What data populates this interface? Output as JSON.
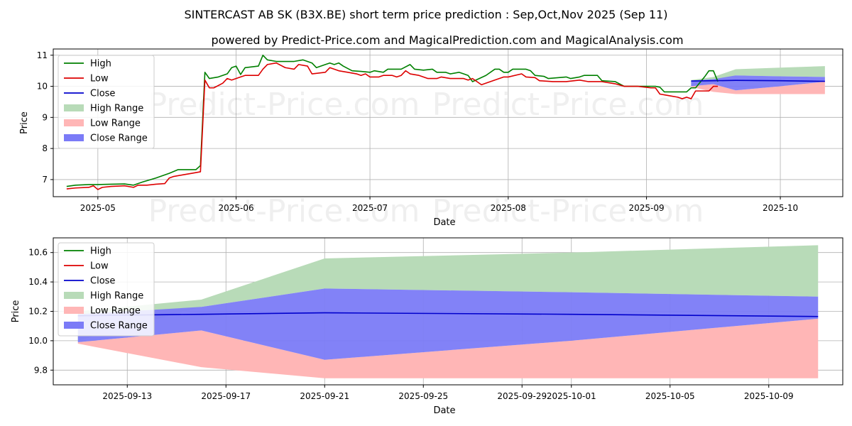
{
  "title": "SINTERCAST AB SK (B3X.BE) short term price prediction : Sep,Oct,Nov 2025 (Sep 11)",
  "subtitle": "powered by Predict-Price.com and MagicalPrediction.com and MagicalAnalysis.com",
  "watermark": "Predict-Price.com",
  "colors": {
    "high": "#008000",
    "low": "#dd0000",
    "close": "#0000cc",
    "high_range": "#b8dbb8",
    "low_range": "#ffb6b6",
    "close_range": "#7b7bf7"
  },
  "legend": [
    "High",
    "Low",
    "Close",
    "High Range",
    "Low Range",
    "Close Range"
  ],
  "chart_data": [
    {
      "type": "line",
      "xlabel": "Date",
      "ylabel": "Price",
      "x_range": [
        "2025-04-21",
        "2025-10-15"
      ],
      "ylim": [
        6.45,
        11.2
      ],
      "grid": true,
      "legend_position": "top-left",
      "x_ticks": [
        "2025-05-01",
        "2025-06-01",
        "2025-07-01",
        "2025-08-01",
        "2025-09-01",
        "2025-10-01"
      ],
      "x_tick_labels": [
        "2025-05",
        "2025-06",
        "2025-07",
        "2025-08",
        "2025-09",
        "2025-10"
      ],
      "y_ticks": [
        7,
        8,
        9,
        10,
        11
      ],
      "series": [
        {
          "name": "High",
          "points": [
            [
              "2025-04-24",
              6.78
            ],
            [
              "2025-04-26",
              6.82
            ],
            [
              "2025-04-29",
              6.84
            ],
            [
              "2025-05-01",
              6.84
            ],
            [
              "2025-05-04",
              6.85
            ],
            [
              "2025-05-07",
              6.86
            ],
            [
              "2025-05-09",
              6.82
            ],
            [
              "2025-05-11",
              6.92
            ],
            [
              "2025-05-14",
              7.05
            ],
            [
              "2025-05-17",
              7.2
            ],
            [
              "2025-05-19",
              7.32
            ],
            [
              "2025-05-21",
              7.32
            ],
            [
              "2025-05-23",
              7.32
            ],
            [
              "2025-05-24",
              7.45
            ],
            [
              "2025-05-25",
              10.45
            ],
            [
              "2025-05-26",
              10.25
            ],
            [
              "2025-05-28",
              10.3
            ],
            [
              "2025-05-30",
              10.4
            ],
            [
              "2025-05-31",
              10.6
            ],
            [
              "2025-06-01",
              10.65
            ],
            [
              "2025-06-02",
              10.38
            ],
            [
              "2025-06-03",
              10.6
            ],
            [
              "2025-06-06",
              10.65
            ],
            [
              "2025-06-07",
              11.0
            ],
            [
              "2025-06-08",
              10.85
            ],
            [
              "2025-06-10",
              10.8
            ],
            [
              "2025-06-14",
              10.8
            ],
            [
              "2025-06-16",
              10.85
            ],
            [
              "2025-06-18",
              10.75
            ],
            [
              "2025-06-19",
              10.6
            ],
            [
              "2025-06-21",
              10.7
            ],
            [
              "2025-06-22",
              10.75
            ],
            [
              "2025-06-23",
              10.7
            ],
            [
              "2025-06-24",
              10.75
            ],
            [
              "2025-06-25",
              10.65
            ],
            [
              "2025-06-27",
              10.5
            ],
            [
              "2025-06-29",
              10.48
            ],
            [
              "2025-07-01",
              10.45
            ],
            [
              "2025-07-02",
              10.5
            ],
            [
              "2025-07-04",
              10.45
            ],
            [
              "2025-07-05",
              10.55
            ],
            [
              "2025-07-08",
              10.55
            ],
            [
              "2025-07-10",
              10.7
            ],
            [
              "2025-07-11",
              10.55
            ],
            [
              "2025-07-13",
              10.52
            ],
            [
              "2025-07-15",
              10.55
            ],
            [
              "2025-07-16",
              10.45
            ],
            [
              "2025-07-18",
              10.45
            ],
            [
              "2025-07-19",
              10.4
            ],
            [
              "2025-07-21",
              10.45
            ],
            [
              "2025-07-22",
              10.4
            ],
            [
              "2025-07-23",
              10.35
            ],
            [
              "2025-07-24",
              10.15
            ],
            [
              "2025-07-27",
              10.35
            ],
            [
              "2025-07-29",
              10.55
            ],
            [
              "2025-07-30",
              10.55
            ],
            [
              "2025-07-31",
              10.45
            ],
            [
              "2025-08-01",
              10.45
            ],
            [
              "2025-08-02",
              10.55
            ],
            [
              "2025-08-05",
              10.55
            ],
            [
              "2025-08-06",
              10.5
            ],
            [
              "2025-08-07",
              10.35
            ],
            [
              "2025-08-09",
              10.32
            ],
            [
              "2025-08-10",
              10.25
            ],
            [
              "2025-08-14",
              10.3
            ],
            [
              "2025-08-15",
              10.25
            ],
            [
              "2025-08-17",
              10.3
            ],
            [
              "2025-08-18",
              10.35
            ],
            [
              "2025-08-21",
              10.35
            ],
            [
              "2025-08-22",
              10.18
            ],
            [
              "2025-08-25",
              10.15
            ],
            [
              "2025-08-27",
              10.0
            ],
            [
              "2025-09-03",
              10.0
            ],
            [
              "2025-09-04",
              9.97
            ],
            [
              "2025-09-05",
              9.82
            ],
            [
              "2025-09-10",
              9.82
            ],
            [
              "2025-09-11",
              9.95
            ],
            [
              "2025-09-12",
              9.95
            ],
            [
              "2025-09-14",
              10.3
            ],
            [
              "2025-09-15",
              10.5
            ],
            [
              "2025-09-16",
              10.5
            ],
            [
              "2025-09-17",
              10.15
            ]
          ]
        },
        {
          "name": "Low",
          "points": [
            [
              "2025-04-24",
              6.7
            ],
            [
              "2025-04-26",
              6.73
            ],
            [
              "2025-04-29",
              6.75
            ],
            [
              "2025-04-30",
              6.8
            ],
            [
              "2025-05-01",
              6.68
            ],
            [
              "2025-05-02",
              6.75
            ],
            [
              "2025-05-04",
              6.78
            ],
            [
              "2025-05-07",
              6.8
            ],
            [
              "2025-05-09",
              6.75
            ],
            [
              "2025-05-10",
              6.82
            ],
            [
              "2025-05-12",
              6.82
            ],
            [
              "2025-05-14",
              6.85
            ],
            [
              "2025-05-16",
              6.87
            ],
            [
              "2025-05-17",
              7.05
            ],
            [
              "2025-05-18",
              7.1
            ],
            [
              "2025-05-20",
              7.15
            ],
            [
              "2025-05-22",
              7.2
            ],
            [
              "2025-05-24",
              7.25
            ],
            [
              "2025-05-25",
              10.2
            ],
            [
              "2025-05-26",
              9.95
            ],
            [
              "2025-05-27",
              9.95
            ],
            [
              "2025-05-29",
              10.1
            ],
            [
              "2025-05-30",
              10.25
            ],
            [
              "2025-05-31",
              10.2
            ],
            [
              "2025-06-02",
              10.3
            ],
            [
              "2025-06-03",
              10.35
            ],
            [
              "2025-06-06",
              10.35
            ],
            [
              "2025-06-07",
              10.55
            ],
            [
              "2025-06-08",
              10.7
            ],
            [
              "2025-06-10",
              10.75
            ],
            [
              "2025-06-12",
              10.6
            ],
            [
              "2025-06-14",
              10.55
            ],
            [
              "2025-06-15",
              10.7
            ],
            [
              "2025-06-17",
              10.65
            ],
            [
              "2025-06-18",
              10.4
            ],
            [
              "2025-06-21",
              10.45
            ],
            [
              "2025-06-22",
              10.6
            ],
            [
              "2025-06-24",
              10.5
            ],
            [
              "2025-06-26",
              10.45
            ],
            [
              "2025-06-28",
              10.4
            ],
            [
              "2025-06-29",
              10.35
            ],
            [
              "2025-06-30",
              10.4
            ],
            [
              "2025-07-01",
              10.3
            ],
            [
              "2025-07-03",
              10.3
            ],
            [
              "2025-07-04",
              10.35
            ],
            [
              "2025-07-06",
              10.35
            ],
            [
              "2025-07-07",
              10.3
            ],
            [
              "2025-07-08",
              10.35
            ],
            [
              "2025-07-09",
              10.5
            ],
            [
              "2025-07-10",
              10.4
            ],
            [
              "2025-07-12",
              10.35
            ],
            [
              "2025-07-14",
              10.25
            ],
            [
              "2025-07-16",
              10.25
            ],
            [
              "2025-07-17",
              10.3
            ],
            [
              "2025-07-19",
              10.25
            ],
            [
              "2025-07-22",
              10.25
            ],
            [
              "2025-07-23",
              10.2
            ],
            [
              "2025-07-24",
              10.25
            ],
            [
              "2025-07-26",
              10.05
            ],
            [
              "2025-07-27",
              10.1
            ],
            [
              "2025-07-29",
              10.2
            ],
            [
              "2025-07-31",
              10.3
            ],
            [
              "2025-08-01",
              10.3
            ],
            [
              "2025-08-04",
              10.4
            ],
            [
              "2025-08-05",
              10.3
            ],
            [
              "2025-08-07",
              10.28
            ],
            [
              "2025-08-08",
              10.18
            ],
            [
              "2025-08-11",
              10.15
            ],
            [
              "2025-08-14",
              10.15
            ],
            [
              "2025-08-17",
              10.2
            ],
            [
              "2025-08-19",
              10.15
            ],
            [
              "2025-08-22",
              10.15
            ],
            [
              "2025-08-25",
              10.08
            ],
            [
              "2025-08-27",
              10.0
            ],
            [
              "2025-08-30",
              10.0
            ],
            [
              "2025-09-02",
              9.95
            ],
            [
              "2025-09-03",
              9.95
            ],
            [
              "2025-09-04",
              9.75
            ],
            [
              "2025-09-06",
              9.7
            ],
            [
              "2025-09-08",
              9.65
            ],
            [
              "2025-09-09",
              9.6
            ],
            [
              "2025-09-10",
              9.65
            ],
            [
              "2025-09-11",
              9.6
            ],
            [
              "2025-09-12",
              9.85
            ],
            [
              "2025-09-14",
              9.85
            ],
            [
              "2025-09-15",
              9.85
            ],
            [
              "2025-09-16",
              10.0
            ],
            [
              "2025-09-17",
              10.0
            ]
          ]
        },
        {
          "name": "Close",
          "points": [
            [
              "2025-09-11",
              10.17
            ],
            [
              "2025-09-16",
              10.18
            ],
            [
              "2025-09-21",
              10.19
            ],
            [
              "2025-10-01",
              10.18
            ],
            [
              "2025-10-11",
              10.16
            ]
          ]
        }
      ],
      "ranges": [
        {
          "name": "High Range",
          "x": [
            "2025-09-11",
            "2025-09-16",
            "2025-09-21",
            "2025-10-01",
            "2025-10-11"
          ],
          "upper": [
            10.2,
            10.3,
            10.55,
            10.6,
            10.65
          ],
          "lower": [
            10.0,
            10.15,
            10.35,
            10.32,
            10.3
          ]
        },
        {
          "name": "Low Range",
          "x": [
            "2025-09-11",
            "2025-09-16",
            "2025-09-21",
            "2025-10-01",
            "2025-10-11"
          ],
          "upper": [
            10.0,
            10.07,
            9.87,
            10.0,
            10.15
          ],
          "lower": [
            9.98,
            9.82,
            9.75,
            9.75,
            9.75
          ]
        },
        {
          "name": "Close Range",
          "x": [
            "2025-09-11",
            "2025-09-16",
            "2025-09-21",
            "2025-10-01",
            "2025-10-11"
          ],
          "upper": [
            10.18,
            10.23,
            10.35,
            10.32,
            10.3
          ],
          "lower": [
            10.0,
            10.07,
            9.87,
            10.0,
            10.15
          ]
        }
      ]
    },
    {
      "type": "line",
      "xlabel": "Date",
      "ylabel": "Price",
      "x_range": [
        "2025-09-10",
        "2025-10-12"
      ],
      "ylim": [
        9.7,
        10.7
      ],
      "grid": true,
      "legend_position": "top-left",
      "x_ticks": [
        "2025-09-13",
        "2025-09-17",
        "2025-09-21",
        "2025-09-25",
        "2025-09-29",
        "2025-10-01",
        "2025-10-05",
        "2025-10-09"
      ],
      "x_tick_labels": [
        "2025-09-13",
        "2025-09-17",
        "2025-09-21",
        "2025-09-25",
        "2025-09-29",
        "2025-10-01",
        "2025-10-05",
        "2025-10-09"
      ],
      "y_ticks": [
        9.8,
        10.0,
        10.2,
        10.4,
        10.6
      ],
      "y_tick_labels": [
        "9.8",
        "10.0",
        "10.2",
        "10.4",
        "10.6"
      ],
      "series": [
        {
          "name": "Close",
          "points": [
            [
              "2025-09-11",
              10.17
            ],
            [
              "2025-09-16",
              10.18
            ],
            [
              "2025-09-21",
              10.19
            ],
            [
              "2025-10-01",
              10.18
            ],
            [
              "2025-10-11",
              10.165
            ]
          ]
        }
      ],
      "ranges": [
        {
          "name": "High Range",
          "x": [
            "2025-09-11",
            "2025-09-16",
            "2025-09-21",
            "2025-10-01",
            "2025-10-11"
          ],
          "upper": [
            10.2,
            10.28,
            10.56,
            10.6,
            10.65
          ],
          "lower": [
            10.0,
            10.23,
            10.355,
            10.33,
            10.3
          ]
        },
        {
          "name": "Low Range",
          "x": [
            "2025-09-11",
            "2025-09-16",
            "2025-09-21",
            "2025-10-01",
            "2025-10-11"
          ],
          "upper": [
            9.99,
            10.07,
            9.87,
            10.0,
            10.15
          ],
          "lower": [
            9.98,
            9.82,
            9.745,
            9.745,
            9.745
          ]
        },
        {
          "name": "Close Range",
          "x": [
            "2025-09-11",
            "2025-09-16",
            "2025-09-21",
            "2025-10-01",
            "2025-10-11"
          ],
          "upper": [
            10.18,
            10.23,
            10.355,
            10.33,
            10.3
          ],
          "lower": [
            9.99,
            10.07,
            9.87,
            10.0,
            10.15
          ]
        }
      ]
    }
  ]
}
